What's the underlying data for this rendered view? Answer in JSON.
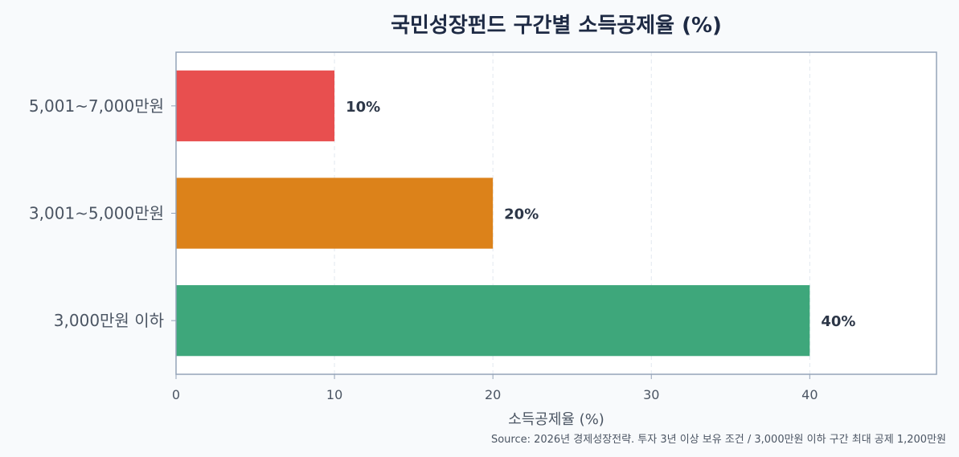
{
  "chart_data": {
    "type": "bar",
    "orientation": "horizontal",
    "title": "국민성장펀드 구간별 소득공제율 (%)",
    "xlabel": "소득공제율 (%)",
    "ylabel": "",
    "categories": [
      "5,001~7,000만원",
      "3,001~5,000만원",
      "3,000만원 이하"
    ],
    "values": [
      10,
      20,
      40
    ],
    "data_labels": [
      "10%",
      "20%",
      "40%"
    ],
    "bar_colors": [
      "#e84f4f",
      "#dc821a",
      "#3ea77b"
    ],
    "xlim": [
      0,
      48
    ],
    "xticks": [
      0,
      10,
      20,
      30,
      40
    ],
    "grid": true,
    "source": "Source: 2026년 경제성장전략. 투자 3년 이상 보유 조건 / 3,000만원 이하 구간 최대 공제 1,200만원"
  },
  "colors": {
    "background": "#f8fafc",
    "plot_background": "#ffffff",
    "axis": "#94a3b8",
    "title": "#1e2a44"
  }
}
